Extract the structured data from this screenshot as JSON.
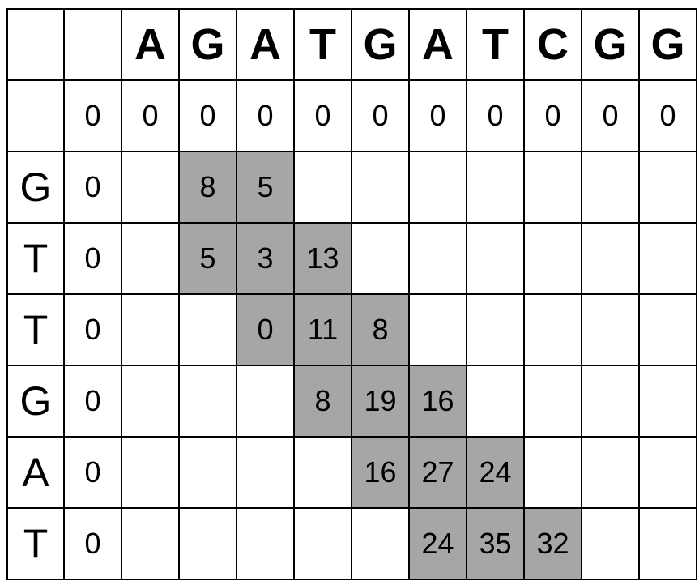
{
  "top_sequence": [
    "A",
    "G",
    "A",
    "T",
    "G",
    "A",
    "T",
    "C",
    "G",
    "G"
  ],
  "first_row_values": [
    "0",
    "0",
    "0",
    "0",
    "0",
    "0",
    "0",
    "0",
    "0",
    "0",
    "0"
  ],
  "rows": [
    {
      "letter": "G",
      "values": [
        "0",
        "",
        "8",
        "5",
        "",
        "",
        "",
        "",
        "",
        "",
        ""
      ]
    },
    {
      "letter": "T",
      "values": [
        "0",
        "",
        "5",
        "3",
        "13",
        "",
        "",
        "",
        "",
        "",
        ""
      ]
    },
    {
      "letter": "T",
      "values": [
        "0",
        "",
        "",
        "0",
        "11",
        "8",
        "",
        "",
        "",
        "",
        ""
      ]
    },
    {
      "letter": "G",
      "values": [
        "0",
        "",
        "",
        "",
        "8",
        "19",
        "16",
        "",
        "",
        "",
        ""
      ]
    },
    {
      "letter": "A",
      "values": [
        "0",
        "",
        "",
        "",
        "",
        "16",
        "27",
        "24",
        "",
        "",
        ""
      ]
    },
    {
      "letter": "T",
      "values": [
        "0",
        "",
        "",
        "",
        "",
        "",
        "24",
        "35",
        "32",
        "",
        ""
      ]
    }
  ],
  "highlighted": [
    [
      0,
      2
    ],
    [
      0,
      3
    ],
    [
      1,
      2
    ],
    [
      1,
      3
    ],
    [
      1,
      4
    ],
    [
      2,
      3
    ],
    [
      2,
      4
    ],
    [
      2,
      5
    ],
    [
      3,
      4
    ],
    [
      3,
      5
    ],
    [
      3,
      6
    ],
    [
      4,
      5
    ],
    [
      4,
      6
    ],
    [
      4,
      7
    ],
    [
      5,
      6
    ],
    [
      5,
      7
    ],
    [
      5,
      8
    ]
  ],
  "colors": {
    "highlight": "#a6a6a6",
    "border": "#000000",
    "background": "#ffffff"
  }
}
